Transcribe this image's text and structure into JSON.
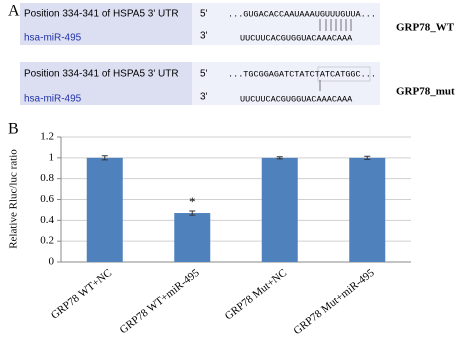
{
  "panel_a": {
    "label": "A",
    "rows": [
      {
        "position": "Position 334-341 of HSPA5 3' UTR",
        "five_prime": "5'",
        "target": "...GUGACACCAAUAAAUGUUUGUUA...",
        "mirna": "hsa-miR-495",
        "three_prime": "3'",
        "mirna_seq": "UUCUUCACGUGGUACAAACAAA",
        "name": "GRP78_WT"
      },
      {
        "position": "Position 334-341 of HSPA5 3' UTR",
        "five_prime": "5'",
        "target": "...TGCGGAGATCTATCTATCATGGC...",
        "mirna": "hsa-miR-495",
        "three_prime": "3'",
        "mirna_seq": "UUCUUCACGUGGUACAAACAAA",
        "name": "GRP78_mut"
      }
    ]
  },
  "chart_data": {
    "type": "bar",
    "panel_label": "B",
    "y_label": "Relative Rluc/luc ratio",
    "categories": [
      "GRP78 WT+NC",
      "GRP78 WT+miR-495",
      "GRP78 Mut+NC",
      "GRP78 Mut+miR-495"
    ],
    "values": [
      1.0,
      0.47,
      1.0,
      1.0
    ],
    "errors": [
      0.02,
      0.02,
      0.01,
      0.015
    ],
    "color": "#4f81bd",
    "annotation": "*",
    "ylim": [
      0,
      1.2
    ],
    "yticks": [
      0,
      0.2,
      0.4,
      0.6,
      0.8,
      1,
      1.2
    ],
    "grid": true
  }
}
